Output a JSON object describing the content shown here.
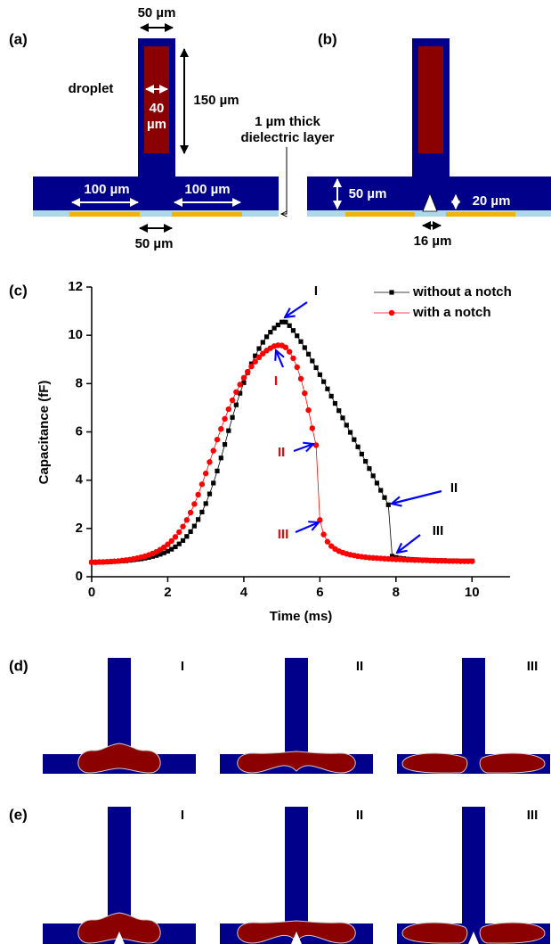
{
  "panel_a": {
    "label": "(a)",
    "channel_width": "50 µm",
    "height": "150 µm",
    "droplet": "droplet",
    "droplet_width": [
      "40",
      "µm"
    ],
    "dielectric": [
      "1 µm thick",
      "dielectric layer"
    ],
    "electrode_left": "100 µm",
    "electrode_right": "100 µm",
    "gap": "50 µm"
  },
  "panel_b": {
    "label": "(b)",
    "channel_height": "50 µm",
    "notch_height": "20 µm",
    "notch_width": "16 µm"
  },
  "chart_data": {
    "type": "line",
    "label": "(c)",
    "x_label": "Time (ms)",
    "y_label": "Capacitance (fF)",
    "xlim": [
      0,
      11
    ],
    "xticks": [
      0,
      2,
      4,
      6,
      8,
      10
    ],
    "ylim": [
      0,
      12
    ],
    "yticks": [
      0,
      2,
      4,
      6,
      8,
      10,
      12
    ],
    "legend": "top-right",
    "x": [
      0.0,
      0.1,
      0.2,
      0.3,
      0.4,
      0.5,
      0.6,
      0.7,
      0.8,
      0.9,
      1.0,
      1.1,
      1.2,
      1.3,
      1.4,
      1.5,
      1.6,
      1.7,
      1.8,
      1.9,
      2.0,
      2.1,
      2.2,
      2.3,
      2.4,
      2.5,
      2.6,
      2.7,
      2.8,
      2.9,
      3.0,
      3.1,
      3.2,
      3.3,
      3.4,
      3.5,
      3.6,
      3.7,
      3.8,
      3.9,
      4.0,
      4.1,
      4.2,
      4.3,
      4.4,
      4.5,
      4.6,
      4.7,
      4.8,
      4.9,
      5.0,
      5.1,
      5.2,
      5.3,
      5.4,
      5.5,
      5.6,
      5.7,
      5.8,
      5.9,
      6.0,
      6.1,
      6.2,
      6.3,
      6.4,
      6.5,
      6.6,
      6.7,
      6.8,
      6.9,
      7.0,
      7.1,
      7.2,
      7.3,
      7.4,
      7.5,
      7.6,
      7.7,
      7.8,
      7.9,
      8.0,
      8.1,
      8.2,
      8.3,
      8.4,
      8.5,
      8.6,
      8.7,
      8.8,
      8.9,
      9.0,
      9.1,
      9.2,
      9.3,
      9.4,
      9.5,
      9.6,
      9.7,
      9.8,
      9.9,
      10.0
    ],
    "series": [
      {
        "name": "without a notch",
        "color": "#000000",
        "marker": "square",
        "values": [
          0.6,
          0.6,
          0.6,
          0.61,
          0.61,
          0.62,
          0.63,
          0.64,
          0.65,
          0.66,
          0.68,
          0.7,
          0.72,
          0.74,
          0.77,
          0.8,
          0.84,
          0.88,
          0.93,
          0.99,
          1.06,
          1.14,
          1.24,
          1.36,
          1.5,
          1.67,
          1.87,
          2.1,
          2.37,
          2.68,
          3.03,
          3.43,
          3.88,
          4.38,
          4.92,
          5.48,
          6.05,
          6.6,
          7.12,
          7.6,
          8.04,
          8.45,
          8.82,
          9.15,
          9.45,
          9.71,
          9.94,
          10.13,
          10.3,
          10.43,
          10.55,
          10.55,
          10.4,
          10.2,
          9.98,
          9.74,
          9.49,
          9.22,
          8.94,
          8.66,
          8.37,
          8.08,
          7.78,
          7.48,
          7.18,
          6.88,
          6.58,
          6.28,
          5.98,
          5.68,
          5.38,
          5.08,
          4.78,
          4.48,
          4.18,
          3.88,
          3.58,
          3.28,
          2.98,
          0.85,
          0.8,
          0.77,
          0.75,
          0.73,
          0.72,
          0.71,
          0.7,
          0.69,
          0.69,
          0.68,
          0.68,
          0.67,
          0.67,
          0.66,
          0.66,
          0.66,
          0.65,
          0.65,
          0.65,
          0.65,
          0.65
        ]
      },
      {
        "name": "with a notch",
        "color": "#ff0000",
        "marker": "circle",
        "values": [
          0.6,
          0.6,
          0.61,
          0.61,
          0.62,
          0.63,
          0.64,
          0.65,
          0.67,
          0.69,
          0.71,
          0.74,
          0.77,
          0.81,
          0.85,
          0.9,
          0.96,
          1.03,
          1.12,
          1.22,
          1.34,
          1.48,
          1.65,
          1.85,
          2.08,
          2.35,
          2.66,
          3.01,
          3.4,
          3.83,
          4.28,
          4.75,
          5.22,
          5.68,
          6.12,
          6.54,
          6.94,
          7.31,
          7.65,
          7.96,
          8.24,
          8.49,
          8.71,
          8.91,
          9.09,
          9.24,
          9.37,
          9.47,
          9.55,
          9.59,
          9.58,
          9.5,
          9.32,
          9.05,
          8.68,
          8.2,
          7.6,
          6.9,
          6.15,
          5.45,
          2.35,
          1.75,
          1.45,
          1.27,
          1.15,
          1.06,
          1.0,
          0.95,
          0.91,
          0.88,
          0.85,
          0.83,
          0.81,
          0.79,
          0.78,
          0.77,
          0.76,
          0.75,
          0.74,
          0.73,
          0.72,
          0.72,
          0.71,
          0.7,
          0.7,
          0.69,
          0.69,
          0.68,
          0.68,
          0.67,
          0.67,
          0.66,
          0.66,
          0.66,
          0.65,
          0.65,
          0.65,
          0.64,
          0.64,
          0.64,
          0.64
        ]
      }
    ],
    "annotations": [
      {
        "text": "I",
        "color": "#000000"
      },
      {
        "text": "II",
        "color": "#000000"
      },
      {
        "text": "III",
        "color": "#000000"
      },
      {
        "text": "I",
        "color": "#ff0000"
      },
      {
        "text": "II",
        "color": "#ff0000"
      },
      {
        "text": "III",
        "color": "#ff0000"
      }
    ],
    "arrow_color": "#0000ff"
  },
  "panel_d": {
    "label": "(d)",
    "frames": [
      "I",
      "II",
      "III"
    ]
  },
  "panel_e": {
    "label": "(e)",
    "frames": [
      "I",
      "II",
      "III"
    ]
  }
}
